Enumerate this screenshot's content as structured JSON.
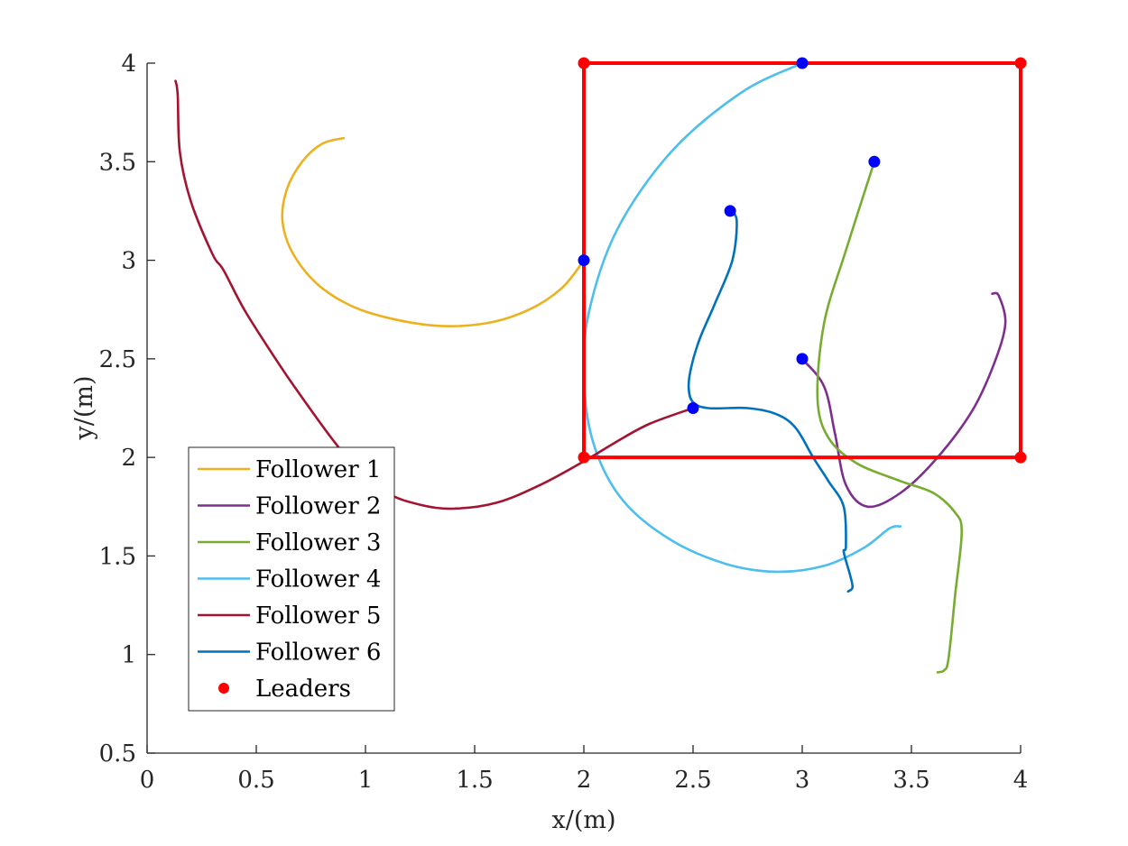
{
  "chart_data": {
    "type": "line",
    "xlabel": "x/(m)",
    "ylabel": "y/(m)",
    "xlim": [
      0,
      4
    ],
    "ylim": [
      0.5,
      4
    ],
    "xticks": [
      0,
      0.5,
      1,
      1.5,
      2,
      2.5,
      3,
      3.5,
      4
    ],
    "yticks": [
      0.5,
      1,
      1.5,
      2,
      2.5,
      3,
      3.5,
      4
    ],
    "xtick_labels": [
      "0",
      "0.5",
      "1",
      "1.5",
      "2",
      "2.5",
      "3",
      "3.5",
      "4"
    ],
    "ytick_labels": [
      "0.5",
      "1",
      "1.5",
      "2",
      "2.5",
      "3",
      "3.5",
      "4"
    ],
    "grid": false,
    "legend_position": "bottom-left",
    "series": [
      {
        "name": "Follower 1",
        "color": "#EDB120",
        "points": [
          [
            0.9,
            3.62
          ],
          [
            0.8,
            3.59
          ],
          [
            0.71,
            3.5
          ],
          [
            0.64,
            3.36
          ],
          [
            0.62,
            3.2
          ],
          [
            0.67,
            3.03
          ],
          [
            0.8,
            2.86
          ],
          [
            1.0,
            2.74
          ],
          [
            1.3,
            2.67
          ],
          [
            1.55,
            2.68
          ],
          [
            1.75,
            2.75
          ],
          [
            1.9,
            2.86
          ],
          [
            2.0,
            3.0
          ]
        ]
      },
      {
        "name": "Follower 2",
        "color": "#7E2F8E",
        "points": [
          [
            3.0,
            2.5
          ],
          [
            3.1,
            2.36
          ],
          [
            3.15,
            2.12
          ],
          [
            3.2,
            1.86
          ],
          [
            3.3,
            1.75
          ],
          [
            3.45,
            1.82
          ],
          [
            3.62,
            2.0
          ],
          [
            3.78,
            2.24
          ],
          [
            3.88,
            2.48
          ],
          [
            3.93,
            2.68
          ],
          [
            3.9,
            2.82
          ],
          [
            3.87,
            2.83
          ]
        ]
      },
      {
        "name": "Follower 3",
        "color": "#77AC30",
        "points": [
          [
            3.33,
            3.5
          ],
          [
            3.2,
            3.05
          ],
          [
            3.1,
            2.68
          ],
          [
            3.07,
            2.3
          ],
          [
            3.12,
            2.1
          ],
          [
            3.25,
            1.97
          ],
          [
            3.45,
            1.88
          ],
          [
            3.6,
            1.82
          ],
          [
            3.7,
            1.72
          ],
          [
            3.73,
            1.62
          ],
          [
            3.7,
            1.3
          ],
          [
            3.67,
            0.98
          ],
          [
            3.65,
            0.92
          ],
          [
            3.62,
            0.91
          ]
        ]
      },
      {
        "name": "Follower 4",
        "color": "#4DBEEE",
        "points": [
          [
            3.0,
            4.0
          ],
          [
            2.72,
            3.85
          ],
          [
            2.4,
            3.55
          ],
          [
            2.15,
            3.15
          ],
          [
            2.02,
            2.72
          ],
          [
            2.0,
            2.38
          ],
          [
            2.05,
            2.05
          ],
          [
            2.18,
            1.78
          ],
          [
            2.4,
            1.58
          ],
          [
            2.65,
            1.46
          ],
          [
            2.88,
            1.42
          ],
          [
            3.1,
            1.45
          ],
          [
            3.28,
            1.54
          ],
          [
            3.4,
            1.64
          ],
          [
            3.45,
            1.65
          ]
        ]
      },
      {
        "name": "Follower 5",
        "color": "#A2142F",
        "points": [
          [
            0.13,
            3.91
          ],
          [
            0.14,
            3.84
          ],
          [
            0.15,
            3.55
          ],
          [
            0.2,
            3.3
          ],
          [
            0.3,
            3.03
          ],
          [
            0.35,
            2.95
          ],
          [
            0.45,
            2.74
          ],
          [
            0.6,
            2.48
          ],
          [
            0.68,
            2.35
          ],
          [
            0.85,
            2.09
          ],
          [
            0.95,
            1.96
          ],
          [
            1.1,
            1.82
          ],
          [
            1.25,
            1.76
          ],
          [
            1.4,
            1.74
          ],
          [
            1.6,
            1.77
          ],
          [
            1.8,
            1.86
          ],
          [
            2.0,
            1.98
          ],
          [
            2.15,
            2.08
          ],
          [
            2.3,
            2.17
          ],
          [
            2.5,
            2.25
          ]
        ]
      },
      {
        "name": "Follower 6",
        "color": "#0072BD",
        "points": [
          [
            2.67,
            3.25
          ],
          [
            2.7,
            3.2
          ],
          [
            2.68,
            3.0
          ],
          [
            2.6,
            2.78
          ],
          [
            2.53,
            2.6
          ],
          [
            2.49,
            2.45
          ],
          [
            2.48,
            2.35
          ],
          [
            2.5,
            2.28
          ],
          [
            2.57,
            2.25
          ],
          [
            2.75,
            2.25
          ],
          [
            2.88,
            2.22
          ],
          [
            2.97,
            2.15
          ],
          [
            3.05,
            2.0
          ],
          [
            3.12,
            1.88
          ],
          [
            3.19,
            1.75
          ],
          [
            3.2,
            1.55
          ],
          [
            3.19,
            1.52
          ],
          [
            3.22,
            1.4
          ],
          [
            3.23,
            1.34
          ],
          [
            3.21,
            1.32
          ]
        ]
      }
    ],
    "leaders": {
      "name": "Leaders",
      "color": "#FF0000",
      "points": [
        [
          2,
          4
        ],
        [
          4,
          4
        ],
        [
          4,
          2
        ],
        [
          2,
          2
        ]
      ],
      "boundary": [
        [
          2,
          2
        ],
        [
          2,
          4
        ],
        [
          4,
          4
        ],
        [
          4,
          2
        ],
        [
          2,
          2
        ]
      ]
    },
    "markers": {
      "color": "#0000FF",
      "points": [
        [
          3.0,
          4.0
        ],
        [
          3.33,
          3.5
        ],
        [
          2.67,
          3.25
        ],
        [
          2.0,
          3.0
        ],
        [
          3.0,
          2.5
        ],
        [
          2.5,
          2.25
        ]
      ]
    }
  }
}
